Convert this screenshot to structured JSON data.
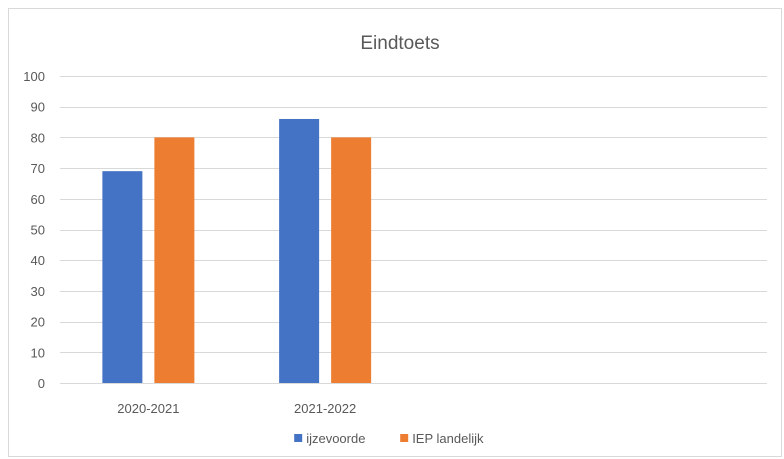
{
  "chart_data": {
    "type": "bar",
    "title": "Eindtoets",
    "xlabel": "",
    "ylabel": "",
    "categories": [
      "2020-2021",
      "2021-2022",
      "",
      ""
    ],
    "series": [
      {
        "name": "ijzevoorde",
        "values": [
          69,
          86,
          null,
          null
        ],
        "color": "#4472c4"
      },
      {
        "name": "IEP landelijk",
        "values": [
          80,
          80,
          null,
          null
        ],
        "color": "#ed7d31"
      }
    ],
    "ylim": [
      0,
      100
    ],
    "yticks": [
      0,
      10,
      20,
      30,
      40,
      50,
      60,
      70,
      80,
      90,
      100
    ],
    "grid": true,
    "legend_position": "bottom"
  }
}
